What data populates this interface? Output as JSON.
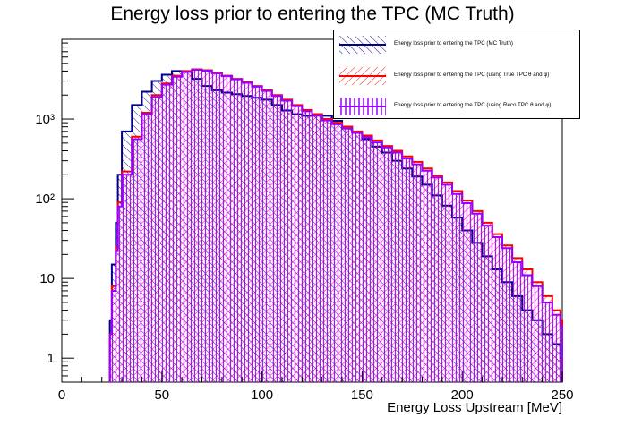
{
  "chart_data": {
    "type": "histogram",
    "title": "Energy loss prior to entering the TPC (MC Truth)",
    "xlabel": "Energy Loss Upstream [MeV]",
    "ylabel": "",
    "xlim": [
      0,
      250
    ],
    "ylim": [
      0.5,
      10000
    ],
    "yscale": "log",
    "x_ticks": [
      0,
      50,
      100,
      150,
      200,
      250
    ],
    "x_tick_labels": [
      "0",
      "50",
      "100",
      "150",
      "200",
      "250"
    ],
    "y_ticks": [
      1,
      10,
      100,
      1000
    ],
    "y_tick_labels": [
      "1",
      "10",
      "10²",
      "10³"
    ],
    "legend_position": "top-right",
    "series": [
      {
        "name": "Energy loss prior to entering the TPC (MC Truth)",
        "color": "#00008b",
        "fill": "diagonal-hatch",
        "points": [
          [
            24,
            3
          ],
          [
            25,
            15
          ],
          [
            27,
            50
          ],
          [
            28,
            200
          ],
          [
            30,
            700
          ],
          [
            35,
            1500
          ],
          [
            40,
            2200
          ],
          [
            45,
            3000
          ],
          [
            50,
            3600
          ],
          [
            55,
            4000
          ],
          [
            60,
            3900
          ],
          [
            65,
            3200
          ],
          [
            70,
            2600
          ],
          [
            75,
            2300
          ],
          [
            80,
            2150
          ],
          [
            85,
            2050
          ],
          [
            90,
            1950
          ],
          [
            95,
            1850
          ],
          [
            100,
            1750
          ],
          [
            105,
            1500
          ],
          [
            110,
            1280
          ],
          [
            115,
            1150
          ],
          [
            120,
            1100
          ],
          [
            125,
            1150
          ],
          [
            130,
            1100
          ],
          [
            135,
            950
          ],
          [
            140,
            800
          ],
          [
            145,
            680
          ],
          [
            150,
            560
          ],
          [
            155,
            450
          ],
          [
            160,
            380
          ],
          [
            165,
            300
          ],
          [
            170,
            240
          ],
          [
            175,
            190
          ],
          [
            180,
            150
          ],
          [
            185,
            110
          ],
          [
            190,
            82
          ],
          [
            195,
            58
          ],
          [
            200,
            40
          ],
          [
            205,
            28
          ],
          [
            210,
            19
          ],
          [
            215,
            13
          ],
          [
            220,
            9
          ],
          [
            225,
            6
          ],
          [
            230,
            4
          ],
          [
            235,
            3
          ],
          [
            240,
            2
          ],
          [
            245,
            1.5
          ],
          [
            249,
            1
          ]
        ]
      },
      {
        "name": "Energy loss prior to entering the TPC (using True TPC θ and φ)",
        "color": "#ff0000",
        "fill": "diagonal-hatch",
        "points": [
          [
            24,
            2
          ],
          [
            25,
            8
          ],
          [
            27,
            25
          ],
          [
            28,
            90
          ],
          [
            30,
            220
          ],
          [
            35,
            600
          ],
          [
            40,
            1200
          ],
          [
            45,
            2000
          ],
          [
            50,
            2800
          ],
          [
            55,
            3500
          ],
          [
            60,
            4000
          ],
          [
            65,
            4200
          ],
          [
            70,
            4100
          ],
          [
            75,
            3800
          ],
          [
            80,
            3500
          ],
          [
            85,
            3200
          ],
          [
            90,
            2900
          ],
          [
            95,
            2600
          ],
          [
            100,
            2300
          ],
          [
            105,
            2000
          ],
          [
            110,
            1750
          ],
          [
            115,
            1500
          ],
          [
            120,
            1300
          ],
          [
            125,
            1150
          ],
          [
            130,
            1000
          ],
          [
            135,
            900
          ],
          [
            140,
            800
          ],
          [
            145,
            700
          ],
          [
            150,
            620
          ],
          [
            155,
            540
          ],
          [
            160,
            460
          ],
          [
            165,
            400
          ],
          [
            170,
            340
          ],
          [
            175,
            290
          ],
          [
            180,
            240
          ],
          [
            185,
            195
          ],
          [
            190,
            160
          ],
          [
            195,
            125
          ],
          [
            200,
            95
          ],
          [
            205,
            70
          ],
          [
            210,
            50
          ],
          [
            215,
            36
          ],
          [
            220,
            26
          ],
          [
            225,
            18
          ],
          [
            230,
            13
          ],
          [
            235,
            9
          ],
          [
            240,
            6
          ],
          [
            245,
            4
          ],
          [
            249,
            3
          ]
        ]
      },
      {
        "name": "Energy loss prior to entering the TPC (using Reco TPC θ and φ)",
        "color": "#9900ff",
        "fill": "vertical-hatch",
        "points": [
          [
            24,
            2
          ],
          [
            25,
            7
          ],
          [
            27,
            22
          ],
          [
            28,
            80
          ],
          [
            30,
            200
          ],
          [
            35,
            560
          ],
          [
            40,
            1150
          ],
          [
            45,
            1900
          ],
          [
            50,
            2700
          ],
          [
            55,
            3400
          ],
          [
            60,
            3900
          ],
          [
            65,
            4150
          ],
          [
            70,
            4050
          ],
          [
            75,
            3750
          ],
          [
            80,
            3450
          ],
          [
            85,
            3150
          ],
          [
            90,
            2850
          ],
          [
            95,
            2550
          ],
          [
            100,
            2250
          ],
          [
            105,
            1950
          ],
          [
            110,
            1700
          ],
          [
            115,
            1450
          ],
          [
            120,
            1250
          ],
          [
            125,
            1100
          ],
          [
            130,
            960
          ],
          [
            135,
            860
          ],
          [
            140,
            760
          ],
          [
            145,
            670
          ],
          [
            150,
            590
          ],
          [
            155,
            510
          ],
          [
            160,
            440
          ],
          [
            165,
            380
          ],
          [
            170,
            320
          ],
          [
            175,
            270
          ],
          [
            180,
            225
          ],
          [
            185,
            185
          ],
          [
            190,
            150
          ],
          [
            195,
            115
          ],
          [
            200,
            88
          ],
          [
            205,
            65
          ],
          [
            210,
            46
          ],
          [
            215,
            33
          ],
          [
            220,
            24
          ],
          [
            225,
            16
          ],
          [
            230,
            11
          ],
          [
            235,
            8
          ],
          [
            240,
            5
          ],
          [
            245,
            3.5
          ],
          [
            249,
            2.5
          ]
        ]
      }
    ]
  }
}
